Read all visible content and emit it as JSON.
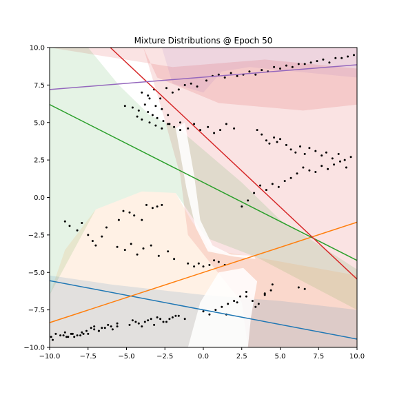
{
  "chart_data": {
    "type": "scatter",
    "title": "Mixture Distributions @ Epoch 50",
    "xlabel": "",
    "ylabel": "",
    "xlim": [
      -10,
      10
    ],
    "ylim": [
      -10,
      10
    ],
    "grid": false,
    "x_ticks": [
      "−10.0",
      "−7.5",
      "−5.0",
      "−2.5",
      "0.0",
      "2.5",
      "5.0",
      "7.5",
      "10.0"
    ],
    "y_ticks": [
      "−10.0",
      "−7.5",
      "−5.0",
      "−2.5",
      "0.0",
      "2.5",
      "5.0",
      "7.5",
      "10.0"
    ],
    "x_tick_values": [
      -10,
      -7.5,
      -5,
      -2.5,
      0,
      2.5,
      5,
      7.5,
      10
    ],
    "y_tick_values": [
      -10,
      -7.5,
      -5,
      -2.5,
      0,
      2.5,
      5,
      7.5,
      10
    ],
    "lines": [
      {
        "color": "#1f77b4",
        "x": [
          -10,
          10
        ],
        "y": [
          -5.55,
          -9.45
        ]
      },
      {
        "color": "#ff7f0e",
        "x": [
          -10,
          10
        ],
        "y": [
          -8.35,
          -1.65
        ]
      },
      {
        "color": "#2ca02c",
        "x": [
          -10,
          10
        ],
        "y": [
          6.2,
          -4.2
        ]
      },
      {
        "color": "#d62728",
        "x": [
          -6.05,
          10
        ],
        "y": [
          10,
          -5.45
        ]
      },
      {
        "color": "#9467bd",
        "x": [
          -10,
          10
        ],
        "y": [
          7.2,
          8.85
        ]
      }
    ],
    "regions": [
      {
        "color": "#d62728",
        "opacity": 0.13,
        "polygon": [
          [
            -3.9,
            10
          ],
          [
            10,
            10
          ],
          [
            10,
            -10
          ],
          [
            2.9,
            -10
          ],
          [
            2.5,
            -7
          ],
          [
            -1.0,
            -2.5
          ],
          [
            -1.5,
            1.5
          ],
          [
            -2.6,
            5.5
          ]
        ]
      },
      {
        "color": "#d62728",
        "opacity": 0.13,
        "polygon": [
          [
            -10,
            10
          ],
          [
            -3.9,
            10
          ],
          [
            -3.0,
            8
          ],
          [
            1.0,
            6.3
          ],
          [
            6.5,
            5.8
          ],
          [
            10,
            6.2
          ],
          [
            10,
            8.6
          ],
          [
            4,
            9.2
          ],
          [
            -2,
            8.7
          ],
          [
            -10,
            10
          ]
        ]
      },
      {
        "color": "#2ca02c",
        "opacity": 0.12,
        "polygon": [
          [
            -10,
            10
          ],
          [
            -7.5,
            10
          ],
          [
            -5.5,
            7.5
          ],
          [
            -3.5,
            5.5
          ],
          [
            -1.5,
            4.5
          ],
          [
            2.5,
            1.0
          ],
          [
            5.0,
            -1.5
          ],
          [
            10,
            -4.8
          ],
          [
            10,
            -7.5
          ],
          [
            3.5,
            -4.0
          ],
          [
            0.2,
            -2.7
          ],
          [
            -1.8,
            0.3
          ],
          [
            -4.0,
            0.4
          ],
          [
            -7.0,
            -0.8
          ],
          [
            -10,
            -6.5
          ]
        ]
      },
      {
        "color": "#ff7f0e",
        "opacity": 0.11,
        "polygon": [
          [
            -10,
            -6.5
          ],
          [
            -9.0,
            -3.5
          ],
          [
            -7.0,
            -0.8
          ],
          [
            -4.0,
            0.4
          ],
          [
            -1.8,
            0.3
          ],
          [
            -0.8,
            -1.5
          ],
          [
            0.5,
            -3.5
          ],
          [
            3.5,
            -4.0
          ],
          [
            10,
            -5.2
          ],
          [
            10,
            -10
          ],
          [
            -10,
            -10
          ]
        ]
      },
      {
        "color": "#1f77b4",
        "opacity": 0.13,
        "polygon": [
          [
            -10,
            -5.2
          ],
          [
            -6,
            -5.8
          ],
          [
            0,
            -6.5
          ],
          [
            5,
            -6.9
          ],
          [
            10,
            -7.5
          ],
          [
            10,
            -10
          ],
          [
            2.9,
            -10
          ],
          [
            -10,
            -10
          ]
        ]
      },
      {
        "color": "#9467bd",
        "opacity": 0.11,
        "polygon": [
          [
            -2.7,
            10
          ],
          [
            10,
            10
          ],
          [
            10,
            8.0
          ],
          [
            6,
            8.4
          ],
          [
            3,
            8.7
          ],
          [
            1.2,
            8.4
          ],
          [
            0,
            7.0
          ],
          [
            -2.0,
            7.6
          ]
        ]
      },
      {
        "color": "#ffffff",
        "opacity": 0.85,
        "polygon": [
          [
            -1.8,
            4.6
          ],
          [
            -1.2,
            5.0
          ],
          [
            -0.6,
            1.5
          ],
          [
            -0.2,
            -1.5
          ],
          [
            0.6,
            -3.2
          ],
          [
            1.8,
            -3.8
          ],
          [
            3.3,
            -3.9
          ],
          [
            3.4,
            -4.1
          ],
          [
            2.0,
            -3.95
          ],
          [
            0.3,
            -3.6
          ],
          [
            -0.5,
            -2.0
          ],
          [
            -1.1,
            0.6
          ]
        ]
      },
      {
        "color": "#ffffff",
        "opacity": 0.85,
        "polygon": [
          [
            -1.0,
            -10
          ],
          [
            2.9,
            -10
          ],
          [
            3.1,
            -8.0
          ],
          [
            3.5,
            -5.6
          ],
          [
            2.6,
            -4.7
          ],
          [
            1.0,
            -5.0
          ],
          [
            -0.2,
            -7.0
          ]
        ]
      }
    ],
    "points": {
      "color": "#000000",
      "x": [
        -9.8,
        -9.1,
        -8.9,
        -8.6,
        -8.4,
        -8.0,
        -7.8,
        -7.6,
        -7.3,
        -7.1,
        -6.8,
        -6.6,
        -6.2,
        -5.9,
        -5.6,
        -9.0,
        -8.7,
        -8.2,
        -7.9,
        -7.5,
        -7.2,
        -7.0,
        -6.6,
        -6.3,
        -5.5,
        -5.2,
        -4.8,
        -4.5,
        -4.0,
        -3.7,
        -3.3,
        -3.0,
        -2.7,
        -5.6,
        -5.1,
        -4.7,
        -4.3,
        -3.9,
        -3.4,
        -2.9,
        -2.3,
        -1.9,
        -1.0,
        -0.6,
        -0.3,
        0.0,
        0.4,
        0.7,
        1.0,
        1.4,
        -4.8,
        -4.4,
        -4.0,
        -3.6,
        -3.2,
        -2.8,
        -2.4,
        -2.0,
        -1.6,
        -1.2,
        -5.1,
        -4.6,
        -4.2,
        -3.8,
        -3.5,
        -3.1,
        -2.7,
        -2.3,
        -1.5,
        -1.0,
        -0.6,
        -0.2,
        0.3,
        0.7,
        1.1,
        1.5,
        2.0,
        3.5,
        3.8,
        4.1,
        4.3,
        4.6,
        4.8,
        5.0,
        5.4,
        5.7,
        6.0,
        6.3,
        6.6,
        6.9,
        7.3,
        7.7,
        8.0,
        8.4,
        8.8,
        9.2,
        9.6,
        2.5,
        2.9,
        3.3,
        3.7,
        4.1,
        4.5,
        4.9,
        5.3,
        5.7,
        6.1,
        6.5,
        6.9,
        7.3,
        7.7,
        8.1,
        8.5,
        8.9,
        9.3,
        -9.9,
        -9.6,
        -9.3,
        -9.0,
        -8.8,
        -8.5,
        -8.2,
        -7.9,
        -7.5,
        -7.1,
        -6.8,
        -6.4,
        -6.0,
        -5.6,
        -4.6,
        -4.2,
        -3.8,
        -3.4,
        -3.0,
        -2.6,
        -2.2,
        -1.8,
        0.0,
        0.4,
        0.8,
        1.2,
        1.6,
        2.0,
        2.4,
        2.8,
        3.2,
        3.6,
        4.0,
        4.4,
        1.5,
        2.2,
        2.8,
        3.4,
        4.0,
        4.5,
        6.2,
        6.6,
        -4.0,
        -3.6,
        -3.2,
        -2.8,
        -2.4,
        -2.0,
        -1.6,
        -1.2,
        -0.8,
        -0.4,
        0.2,
        0.6,
        1.0,
        1.4,
        1.8,
        2.2,
        2.6,
        3.0,
        3.4,
        3.8,
        4.2,
        4.6,
        5.0,
        5.4,
        5.8,
        6.2,
        6.6,
        7.0,
        7.4,
        7.8,
        8.2,
        8.6,
        9.0,
        9.4,
        9.8,
        -3.6,
        -3.3,
        -3.0,
        -2.6,
        -2.2,
        -4.3,
        -4.0,
        -3.5,
        -3.1,
        -2.7,
        -2.3,
        -1.9,
        -1.5
      ],
      "y": [
        -9.5,
        -9.2,
        -9.3,
        -9.1,
        -9.3,
        -9.2,
        -9.1,
        -8.9,
        -8.7,
        -8.6,
        -8.9,
        -8.7,
        -8.5,
        -8.8,
        -8.6,
        -1.6,
        -1.9,
        -2.2,
        -1.7,
        -2.5,
        -2.9,
        -3.2,
        -2.6,
        -2.0,
        -1.5,
        -0.9,
        -1.0,
        -1.2,
        -1.5,
        -0.5,
        -0.7,
        -0.6,
        -0.5,
        -3.3,
        -3.5,
        -3.1,
        -3.8,
        -3.4,
        -3.2,
        -3.9,
        -3.6,
        -4.1,
        -4.4,
        -4.6,
        -4.4,
        -4.6,
        -4.5,
        -4.2,
        -4.3,
        -4.5,
        -8.5,
        -8.3,
        -8.6,
        -8.2,
        -8.5,
        -8.1,
        -8.3,
        -8.0,
        -7.9,
        -8.1,
        6.1,
        6.0,
        5.8,
        6.2,
        6.6,
        6.1,
        5.9,
        5.5,
        5.0,
        4.6,
        4.9,
        4.5,
        4.7,
        4.3,
        4.5,
        4.9,
        4.6,
        4.5,
        4.2,
        3.8,
        3.6,
        4.0,
        3.7,
        3.9,
        3.5,
        3.2,
        3.0,
        3.4,
        2.9,
        3.3,
        3.1,
        2.8,
        3.0,
        2.6,
        2.9,
        2.5,
        2.7,
        -0.6,
        -0.2,
        0.3,
        0.8,
        0.5,
        0.9,
        0.7,
        1.1,
        1.3,
        1.6,
        2.0,
        1.8,
        1.7,
        2.1,
        1.9,
        2.2,
        2.4,
        2.0,
        -9.3,
        -9.1,
        -9.2,
        -9.0,
        -9.3,
        -9.1,
        -9.2,
        -9.0,
        -9.1,
        -8.8,
        -8.9,
        -8.7,
        -8.6,
        -8.4,
        -8.2,
        -8.4,
        -8.3,
        -8.1,
        -8.0,
        -8.3,
        -8.1,
        -7.9,
        -7.6,
        -7.8,
        -7.5,
        -7.3,
        -7.1,
        -6.9,
        -6.6,
        -6.3,
        -6.9,
        -7.1,
        -6.5,
        -6.2,
        -7.8,
        -7.0,
        -6.6,
        -7.3,
        -6.4,
        -5.8,
        -6.0,
        -6.1,
        7.0,
        6.8,
        7.2,
        6.6,
        7.3,
        7.0,
        7.2,
        7.5,
        7.6,
        7.4,
        7.8,
        8.1,
        8.2,
        8.0,
        8.3,
        8.1,
        8.2,
        8.4,
        8.2,
        8.5,
        8.4,
        8.7,
        8.6,
        8.8,
        8.7,
        8.9,
        8.9,
        9.0,
        9.1,
        9.2,
        9.0,
        9.3,
        9.3,
        9.4,
        9.5,
        5.7,
        5.5,
        5.3,
        5.1,
        4.9,
        5.4,
        5.2,
        5.0,
        4.8,
        4.6,
        4.9,
        4.7,
        4.5
      ]
    }
  }
}
